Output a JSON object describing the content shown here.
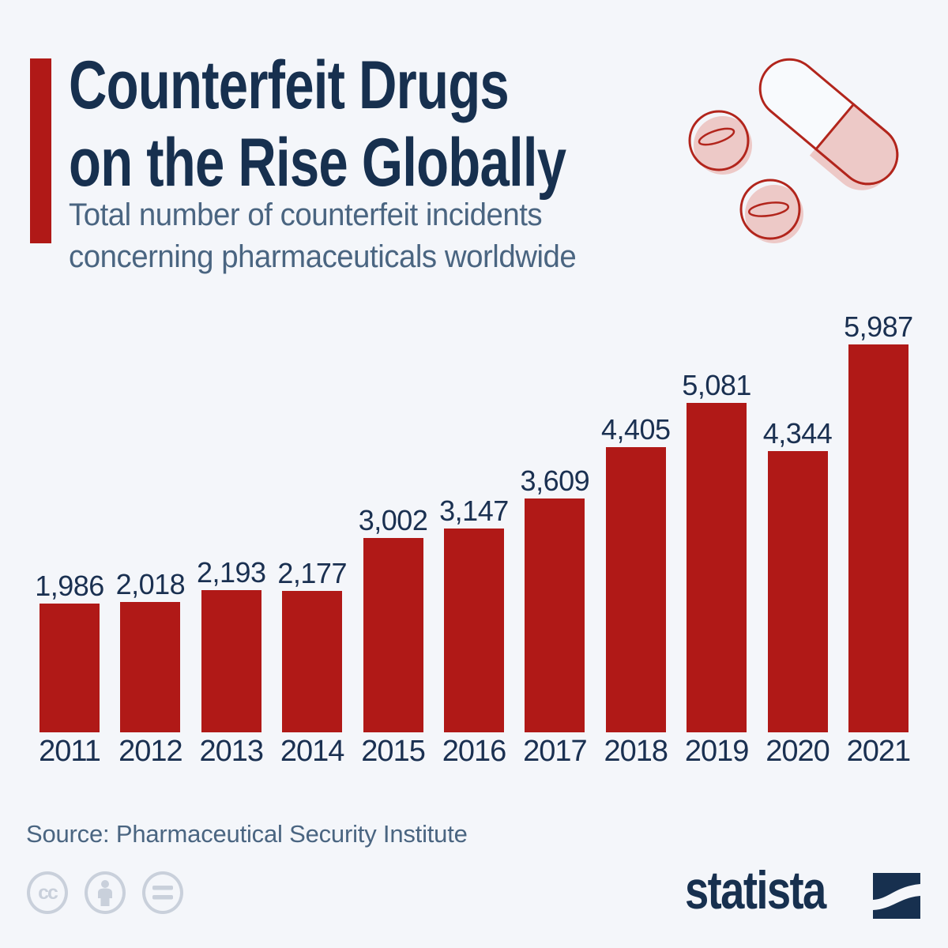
{
  "page": {
    "background": "#F4F6FA"
  },
  "header": {
    "title_line1": "Counterfeit Drugs",
    "title_line2": "on the Rise Globally",
    "subtitle_line1": "Total number of counterfeit incidents",
    "subtitle_line2": "concerning pharmaceuticals worldwide",
    "title_color": "#17304F",
    "subtitle_color": "#4A6581",
    "accent_color": "#B01917"
  },
  "illustration": {
    "name": "pills-illustration",
    "fill_pink": "#EDC9C7",
    "outline_red": "#B2251C",
    "capsule_white": "#F8FAFD"
  },
  "chart_data": {
    "type": "bar",
    "title": "Counterfeit Drugs on the Rise Globally",
    "subtitle": "Total number of counterfeit incidents concerning pharmaceuticals worldwide",
    "categories": [
      "2011",
      "2012",
      "2013",
      "2014",
      "2015",
      "2016",
      "2017",
      "2018",
      "2019",
      "2020",
      "2021"
    ],
    "values": [
      1986,
      2018,
      2193,
      2177,
      3002,
      3147,
      3609,
      4405,
      5081,
      4344,
      5987
    ],
    "value_labels": [
      "1,986",
      "2,018",
      "2,193",
      "2,177",
      "3,002",
      "3,147",
      "3,609",
      "4,405",
      "5,081",
      "4,344",
      "5,987"
    ],
    "xlabel": "",
    "ylabel": "",
    "ylim": [
      0,
      5987
    ],
    "grid": false,
    "legend": null,
    "value_label_position": "above-bar",
    "bar_color": "#B01917",
    "value_label_color": "#1A3051",
    "category_label_color": "#1A3051"
  },
  "footer": {
    "source": "Source: Pharmaceutical Security Institute",
    "license_icons": [
      "cc-icon",
      "cc-by-person-icon",
      "cc-nd-equals-icon"
    ],
    "license_icon_color": "#C9D0DB",
    "brand": "statista",
    "brand_color": "#17304F"
  }
}
